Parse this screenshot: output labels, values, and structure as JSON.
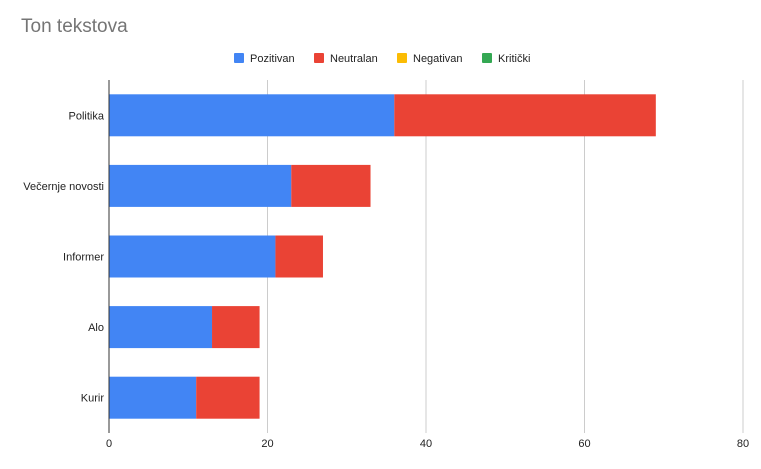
{
  "chart_data": {
    "type": "bar",
    "orientation": "horizontal",
    "stacked": true,
    "title": "Ton tekstova",
    "categories": [
      "Politika",
      "Večernje novosti",
      "Informer",
      "Alo",
      "Kurir"
    ],
    "series": [
      {
        "name": "Pozitivan",
        "color": "#4285f4",
        "values": [
          36,
          23,
          21,
          13,
          11
        ]
      },
      {
        "name": "Neutralan",
        "color": "#ea4335",
        "values": [
          33,
          10,
          6,
          6,
          8
        ]
      },
      {
        "name": "Negativan",
        "color": "#fbbc04",
        "values": [
          0,
          0,
          0,
          0,
          0
        ]
      },
      {
        "name": "Kritički",
        "color": "#34a853",
        "values": [
          0,
          0,
          0,
          0,
          0
        ]
      }
    ],
    "xlim": [
      0,
      80
    ],
    "xticks": [
      "0",
      "20",
      "40",
      "60",
      "80"
    ],
    "xlabel": "",
    "ylabel": "",
    "grid": true,
    "legend_position": "top"
  }
}
